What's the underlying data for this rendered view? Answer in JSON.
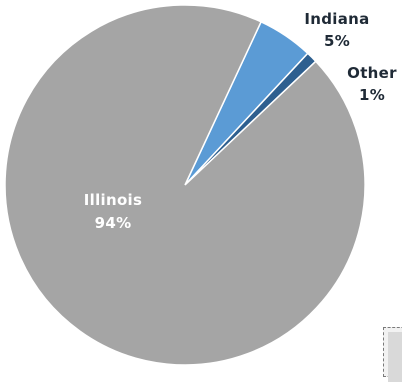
{
  "chart_data": {
    "type": "pie",
    "title": "",
    "start_angle_deg": 90,
    "direction": "clockwise",
    "slices": [
      {
        "label": "Indiana",
        "value": 5,
        "display_value": "5%",
        "color": "#5b9bd5"
      },
      {
        "label": "Other",
        "value": 1,
        "display_value": "1%",
        "color": "#2e5f8f"
      },
      {
        "label": "Illinois",
        "value": 94,
        "display_value": "94%",
        "color": "#a5a5a5"
      }
    ],
    "label_placement": {
      "Indiana": "outside",
      "Other": "outside",
      "Illinois": "inside"
    },
    "legend": "none",
    "slice_border_color": "#ffffff"
  }
}
